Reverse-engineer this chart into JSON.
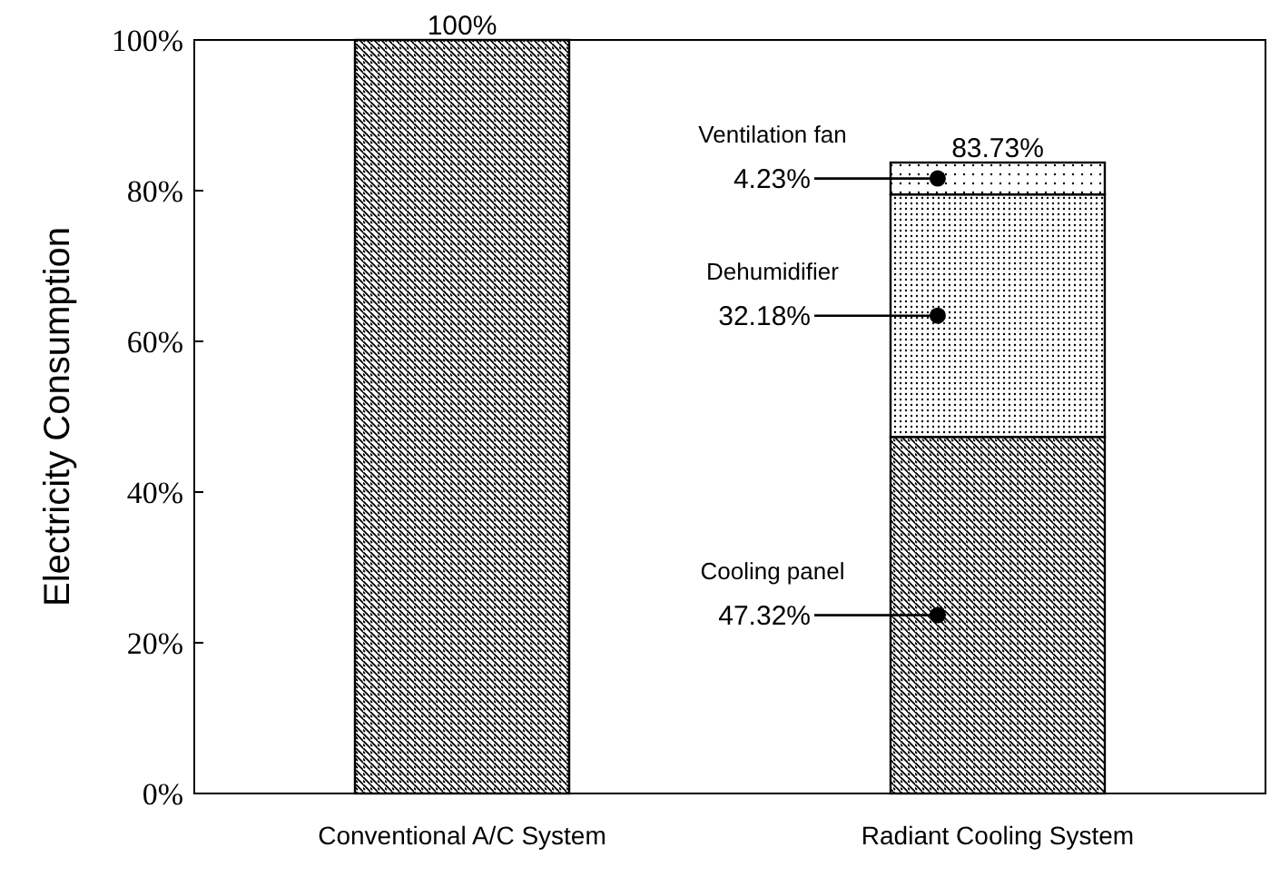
{
  "chart_data": {
    "type": "bar",
    "ylabel": "Electricity Consumption",
    "categories": [
      "Conventional A/C System",
      "Radiant Cooling System"
    ],
    "stacked": true,
    "ylim": [
      0,
      100
    ],
    "yticks": [
      {
        "value": 0,
        "label": "0%"
      },
      {
        "value": 20,
        "label": "20%"
      },
      {
        "value": 40,
        "label": "40%"
      },
      {
        "value": 60,
        "label": "60%"
      },
      {
        "value": 80,
        "label": "80%"
      },
      {
        "value": 100,
        "label": "100%"
      }
    ],
    "series": [
      {
        "color": "#000000",
        "values": [
          100,
          null
        ]
      },
      {
        "name": "Cooling panel",
        "color": "#000000",
        "values": [
          null,
          47.32
        ],
        "value_labels": [
          null,
          "47.32%"
        ]
      },
      {
        "name": "Dehumidifier",
        "color": "#000000",
        "values": [
          null,
          32.18
        ],
        "value_labels": [
          null,
          "32.18%"
        ]
      },
      {
        "name": "Ventilation fan",
        "color": "#000000",
        "values": [
          null,
          4.23
        ],
        "value_labels": [
          null,
          "4.23%"
        ]
      }
    ],
    "totals": [
      "100%",
      "83.73%"
    ]
  }
}
